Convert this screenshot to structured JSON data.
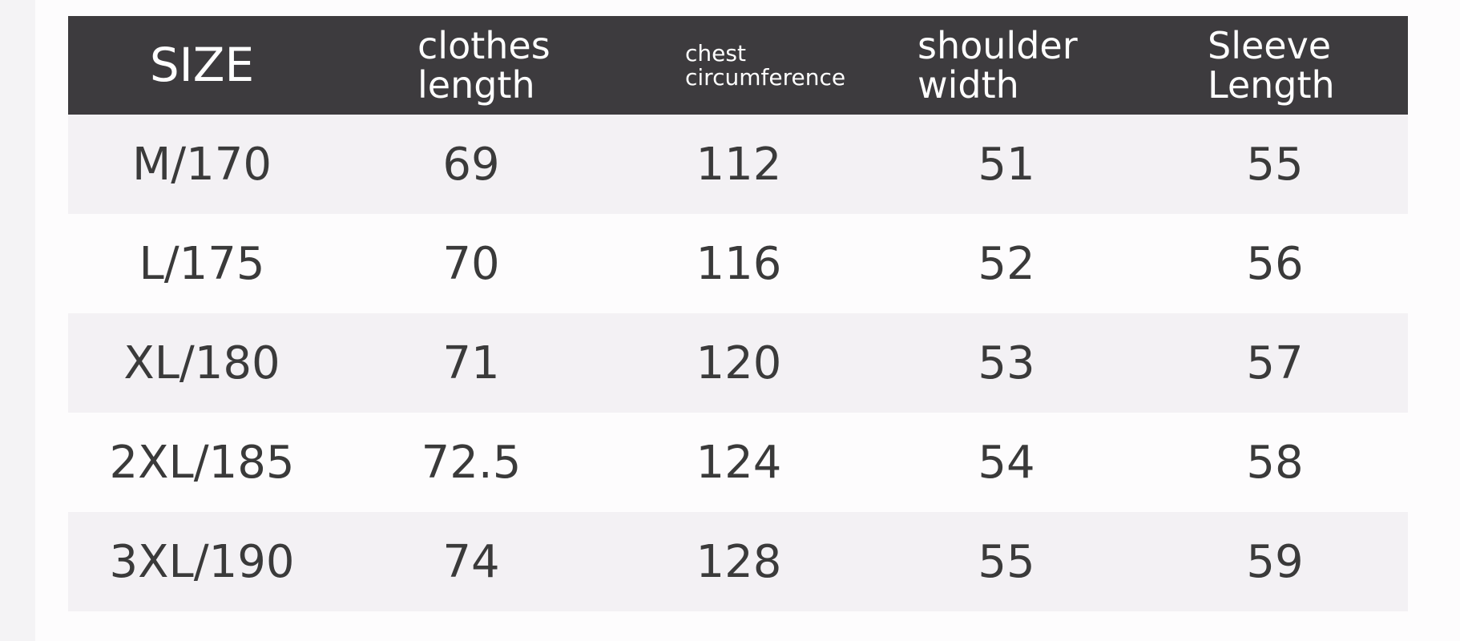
{
  "table": {
    "header": [
      [
        "SIZE"
      ],
      [
        "clothes",
        "length"
      ],
      [
        "chest",
        "circumference"
      ],
      [
        "shoulder",
        "width"
      ],
      [
        "Sleeve",
        "Length"
      ]
    ],
    "rows": [
      [
        "M/170",
        69,
        112,
        51,
        55
      ],
      [
        "L/175",
        70,
        116,
        52,
        56
      ],
      [
        "XL/180",
        71,
        120,
        53,
        57
      ],
      [
        "2XL/185",
        72.5,
        124,
        54,
        58
      ],
      [
        "3XL/190",
        74,
        128,
        55,
        59
      ]
    ]
  }
}
